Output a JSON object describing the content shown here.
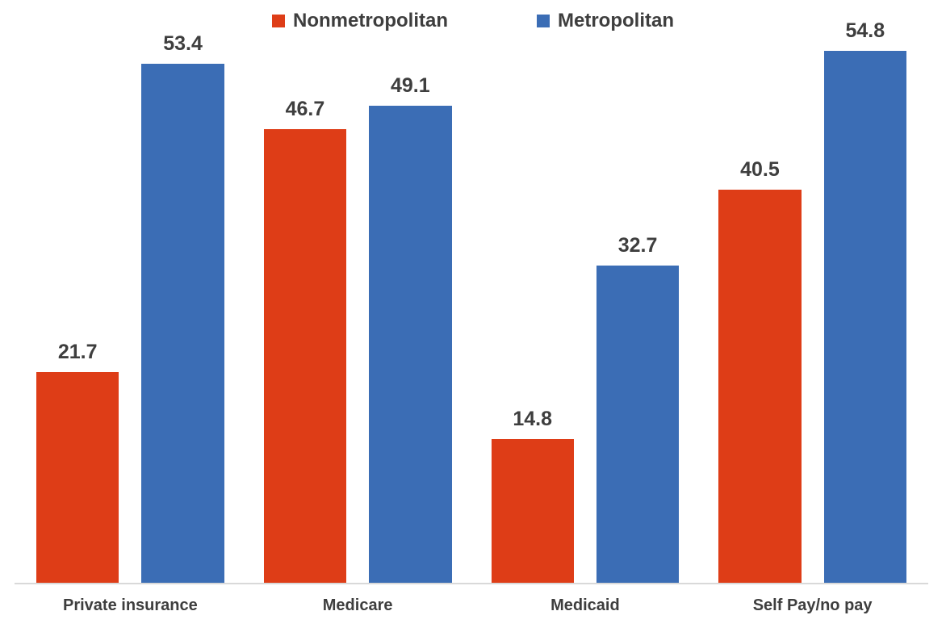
{
  "chart_data": {
    "type": "bar",
    "title": "",
    "xlabel": "",
    "ylabel": "",
    "categories": [
      "Private insurance",
      "Medicare",
      "Medicaid",
      "Self Pay/no pay"
    ],
    "series": [
      {
        "name": "Nonmetropolitan",
        "color": "#DE3D17",
        "values": [
          21.7,
          46.7,
          14.8,
          40.5
        ]
      },
      {
        "name": "Metropolitan",
        "color": "#3B6DB5",
        "values": [
          53.4,
          49.1,
          32.7,
          54.8
        ]
      }
    ],
    "ylim": [
      0,
      60
    ],
    "grid": false,
    "legend_position": "top-center",
    "data_labels": true,
    "value_decimals": 1
  },
  "colors": {
    "label_text": "#3E3E3E",
    "axis_line": "#D9D9D9",
    "background": "#FFFFFF"
  }
}
